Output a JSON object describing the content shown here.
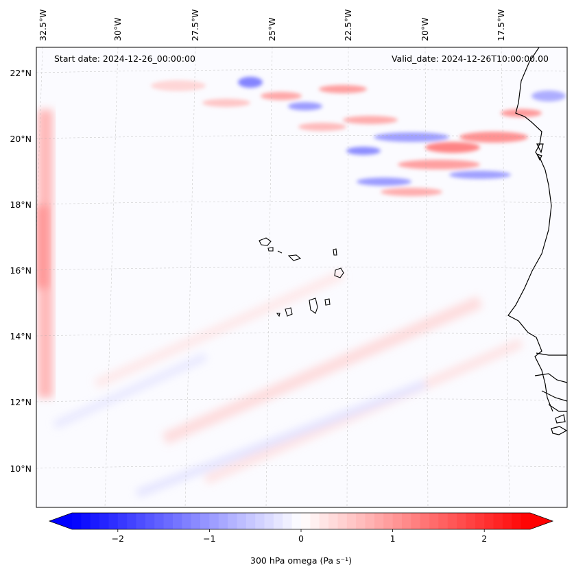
{
  "map": {
    "start_label": "Start date: 2024-12-26_00:00:00",
    "valid_label": "Valid_date: 2024-12-26T10:00:00.00",
    "lon_labels": [
      "32.5°W",
      "30°W",
      "27.5°W",
      "25°W",
      "22.5°W",
      "20°W",
      "17.5°W"
    ],
    "lat_labels": [
      "22°N",
      "20°N",
      "18°N",
      "16°N",
      "14°N",
      "12°N",
      "10°N"
    ],
    "colors": {
      "negative": "#0000ff",
      "neutral": "#ffffff",
      "positive": "#ff0000",
      "coast": "#000000"
    }
  },
  "colorbar": {
    "label": "300 hPa omega (Pa s⁻¹)",
    "ticks": [
      {
        "value": -2,
        "label": "−2"
      },
      {
        "value": -1,
        "label": "−1"
      },
      {
        "value": 0,
        "label": "0"
      },
      {
        "value": 1,
        "label": "1"
      },
      {
        "value": 2,
        "label": "2"
      }
    ],
    "range": [
      -2.5,
      2.5
    ]
  }
}
